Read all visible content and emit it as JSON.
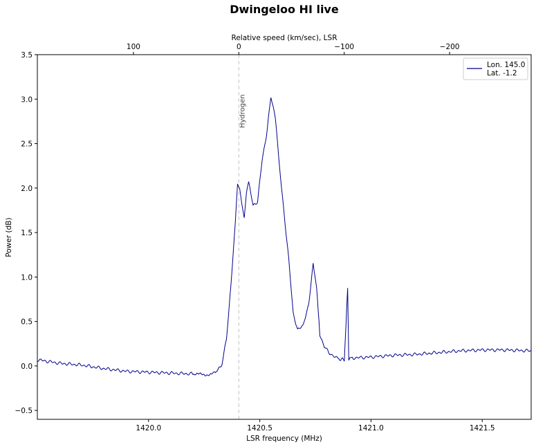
{
  "chart_data": {
    "type": "line",
    "title": "Dwingeloo HI live",
    "xlabel": "LSR frequency (MHz)",
    "ylabel": "Power (dB)",
    "top_xlabel": "Relative speed (km/sec), LSR",
    "xlim": [
      1419.5,
      1421.72
    ],
    "ylim": [
      -0.6,
      3.5
    ],
    "x_ticks": [
      1420.0,
      1420.5,
      1421.0,
      1421.5
    ],
    "x_tick_labels": [
      "1420.0",
      "1420.5",
      "1421.0",
      "1421.5"
    ],
    "y_ticks": [
      -0.5,
      0.0,
      0.5,
      1.0,
      1.5,
      2.0,
      2.5,
      3.0,
      3.5
    ],
    "y_tick_labels": [
      "−0.5",
      "0.0",
      "0.5",
      "1.0",
      "1.5",
      "2.0",
      "2.5",
      "3.0",
      "3.5"
    ],
    "top_ticks": [
      100,
      0,
      -100,
      -200
    ],
    "top_tick_labels": [
      "100",
      "0",
      "−100",
      "−200"
    ],
    "rest_frequency_mhz": 1420.405751,
    "grid": false,
    "legend_position": "top-right",
    "annotation": {
      "text": "Hydrogen",
      "x": 1420.406
    },
    "series": [
      {
        "name": "Lon. 145.0\nLat.  -1.2",
        "legend_lines": [
          "Lon. 145.0",
          "Lat.  -1.2"
        ],
        "color": "#00008b",
        "x": [
          1419.5,
          1419.6,
          1419.7,
          1419.8,
          1419.9,
          1420.0,
          1420.1,
          1420.2,
          1420.25,
          1420.3,
          1420.33,
          1420.35,
          1420.37,
          1420.39,
          1420.4,
          1420.41,
          1420.43,
          1420.44,
          1420.45,
          1420.47,
          1420.49,
          1420.51,
          1420.53,
          1420.55,
          1420.57,
          1420.58,
          1420.59,
          1420.61,
          1420.63,
          1420.65,
          1420.67,
          1420.69,
          1420.7,
          1420.72,
          1420.74,
          1420.755,
          1420.77,
          1420.79,
          1420.81,
          1420.85,
          1420.88,
          1420.895,
          1420.9,
          1420.905,
          1420.92,
          1421.0,
          1421.1,
          1421.2,
          1421.3,
          1421.4,
          1421.5,
          1421.6,
          1421.72
        ],
        "values": [
          0.07,
          0.03,
          0.01,
          -0.03,
          -0.06,
          -0.07,
          -0.08,
          -0.09,
          -0.1,
          -0.08,
          0.02,
          0.3,
          0.9,
          1.6,
          2.05,
          1.98,
          1.65,
          1.95,
          2.07,
          1.8,
          1.85,
          2.3,
          2.6,
          3.02,
          2.8,
          2.5,
          2.2,
          1.7,
          1.2,
          0.6,
          0.4,
          0.45,
          0.5,
          0.7,
          1.14,
          0.9,
          0.35,
          0.22,
          0.15,
          0.08,
          0.07,
          0.87,
          0.07,
          0.09,
          0.09,
          0.1,
          0.12,
          0.13,
          0.15,
          0.17,
          0.18,
          0.18,
          0.17
        ]
      }
    ]
  }
}
